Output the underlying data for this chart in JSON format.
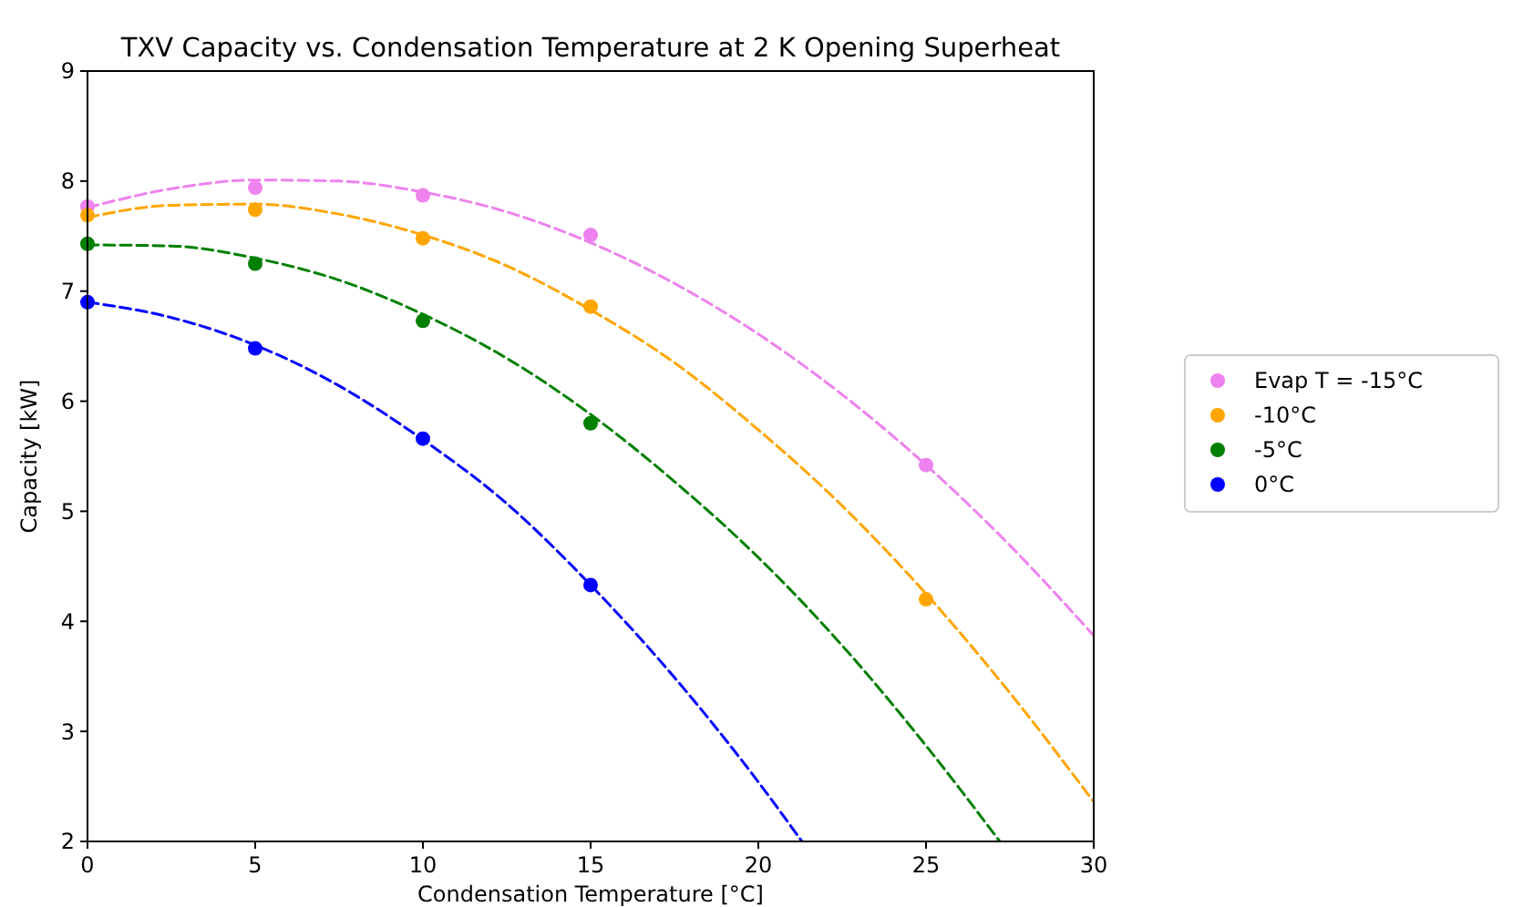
{
  "chart_data": {
    "type": "scatter",
    "title": "TXV Capacity vs. Condensation Temperature at 2 K Opening Superheat",
    "xlabel": "Condensation Temperature [°C]",
    "ylabel": "Capacity [kW]",
    "xlim": [
      0,
      30
    ],
    "xticks": [
      0,
      5,
      10,
      15,
      20,
      25,
      30
    ],
    "ylim": [
      2,
      9
    ],
    "yticks": [
      2,
      3,
      4,
      5,
      6,
      7,
      8,
      9
    ],
    "grid": false,
    "legend": "right",
    "series": [
      {
        "name": "Evap T = -15°C",
        "color": "#ee82ee",
        "marker": "circle",
        "x": [
          0,
          5,
          10,
          15,
          25
        ],
        "values": [
          7.77,
          7.94,
          7.87,
          7.51,
          5.42
        ]
      },
      {
        "name": "-10°C",
        "color": "#ffa500",
        "marker": "circle",
        "x": [
          0,
          5,
          10,
          15,
          25
        ],
        "values": [
          7.69,
          7.74,
          7.48,
          6.86,
          4.2
        ]
      },
      {
        "name": "-5°C",
        "color": "#008000",
        "marker": "circle",
        "x": [
          0,
          5,
          10,
          15
        ],
        "values": [
          7.43,
          7.25,
          6.73,
          5.8
        ]
      },
      {
        "name": "0°C",
        "color": "#0000ff",
        "marker": "circle",
        "x": [
          0,
          5,
          10,
          15
        ],
        "values": [
          6.9,
          6.48,
          5.66,
          4.33
        ]
      },
      {
        "type": "line",
        "color": "#ee82ee",
        "line_style": "dashed",
        "marker": "none",
        "x": [
          0,
          2.5,
          5,
          7.5,
          10,
          12.5,
          15,
          17.5,
          20,
          22.5,
          25,
          27.5,
          30
        ],
        "values": [
          7.76,
          7.93,
          8.01,
          8.0,
          7.9,
          7.72,
          7.44,
          7.07,
          6.61,
          6.06,
          5.42,
          4.69,
          3.87
        ]
      },
      {
        "type": "line",
        "color": "#ffa500",
        "line_style": "dashed",
        "marker": "none",
        "x": [
          0,
          2.5,
          5,
          7.5,
          10,
          12.5,
          15,
          17.5,
          20,
          22.5,
          25,
          27.5,
          30
        ],
        "values": [
          7.67,
          7.78,
          7.79,
          7.7,
          7.51,
          7.23,
          6.83,
          6.35,
          5.74,
          5.05,
          4.25,
          3.35,
          2.36
        ]
      },
      {
        "type": "line",
        "color": "#008000",
        "line_style": "dashed",
        "marker": "none",
        "x": [
          0,
          2.5,
          5,
          7.5,
          10,
          12.5,
          15,
          17.5,
          20,
          22.5,
          25,
          27.2
        ],
        "values": [
          7.42,
          7.41,
          7.3,
          7.1,
          6.79,
          6.39,
          5.88,
          5.27,
          4.58,
          3.78,
          2.87,
          2.0
        ]
      },
      {
        "type": "line",
        "color": "#0000ff",
        "line_style": "dashed",
        "marker": "none",
        "x": [
          0,
          2.5,
          5,
          7.5,
          10,
          12.5,
          15,
          17.5,
          20,
          21.3
        ],
        "values": [
          6.9,
          6.76,
          6.51,
          6.14,
          5.65,
          5.07,
          4.33,
          3.49,
          2.54,
          2.0
        ]
      }
    ]
  }
}
